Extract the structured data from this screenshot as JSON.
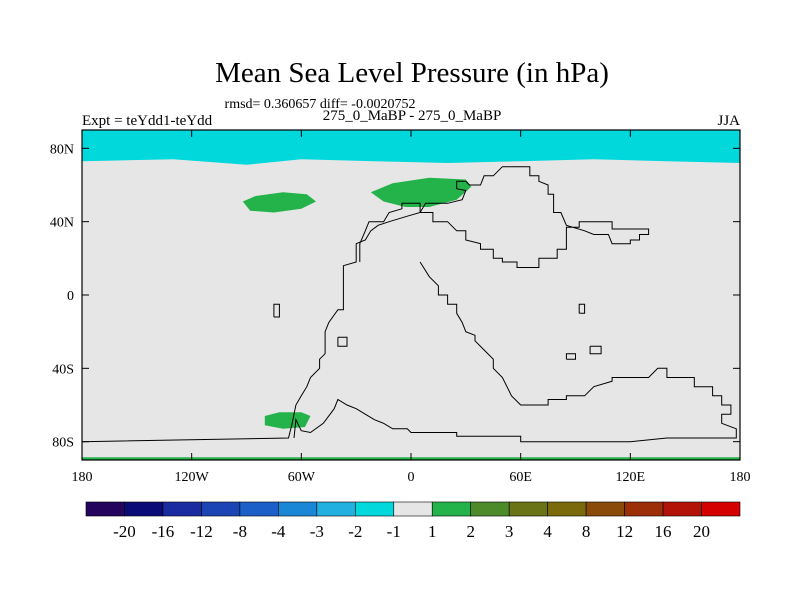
{
  "chart_data": {
    "type": "heatmap",
    "title": "Mean Sea Level Pressure (in hPa)",
    "stats_line": "rmsd= 0.360657 diff= -0.0020752",
    "left_label": "Expt = teYdd1-teYdd",
    "center_label": "275_0_MaBP - 275_0_MaBP",
    "right_label": "JJA",
    "xlim": [
      -180,
      180
    ],
    "ylim": [
      -90,
      90
    ],
    "x_ticks": [
      -180,
      -120,
      -60,
      0,
      60,
      120,
      180
    ],
    "x_tick_labels": [
      "180",
      "120W",
      "60W",
      "0",
      "60E",
      "120E",
      "180"
    ],
    "y_ticks": [
      80,
      40,
      0,
      -40,
      -80
    ],
    "y_tick_labels": [
      "80N",
      "40N",
      "0",
      "40S",
      "80S"
    ],
    "colorbar": {
      "colors": [
        "#24045c",
        "#0b0b78",
        "#1a2aa0",
        "#1b45b4",
        "#1c5fc8",
        "#1a86d6",
        "#22b0e0",
        "#00d8dc",
        "#e6e6e6",
        "#24b24a",
        "#4c8a2a",
        "#6a7416",
        "#7a6a0c",
        "#8a4a0a",
        "#9c2e08",
        "#b31206",
        "#d40000"
      ],
      "labels": [
        "-20",
        "-16",
        "-12",
        "-8",
        "-4",
        "-3",
        "-2",
        "-1",
        "1",
        "2",
        "3",
        "4",
        "8",
        "12",
        "16",
        "20"
      ]
    },
    "fields": {
      "background": "#e6e6e6",
      "negative": "#00d8dc",
      "positive": "#24b24a"
    },
    "regions": [
      {
        "name": "north-polar-band",
        "level": "-2 to -1",
        "points": [
          [
            -180,
            90
          ],
          [
            180,
            90
          ],
          [
            180,
            72
          ],
          [
            140,
            73
          ],
          [
            100,
            74
          ],
          [
            60,
            73
          ],
          [
            20,
            72
          ],
          [
            -20,
            73
          ],
          [
            -60,
            74
          ],
          [
            -90,
            71
          ],
          [
            -130,
            74
          ],
          [
            -180,
            73
          ]
        ]
      },
      {
        "name": "north-atlantic-blob",
        "level": "1 to 2",
        "points": [
          [
            -92,
            51
          ],
          [
            -85,
            54
          ],
          [
            -70,
            56
          ],
          [
            -57,
            55
          ],
          [
            -52,
            51
          ],
          [
            -60,
            47
          ],
          [
            -75,
            45
          ],
          [
            -88,
            46
          ]
        ]
      },
      {
        "name": "europe-blob",
        "level": "1 to 2",
        "points": [
          [
            -22,
            56
          ],
          [
            -10,
            61
          ],
          [
            10,
            64
          ],
          [
            30,
            63
          ],
          [
            33,
            59
          ],
          [
            25,
            52
          ],
          [
            10,
            48
          ],
          [
            -3,
            48
          ],
          [
            -15,
            51
          ]
        ]
      },
      {
        "name": "antarctic-peninsula-blob",
        "level": "1 to 2",
        "points": [
          [
            -80,
            -66
          ],
          [
            -72,
            -64
          ],
          [
            -60,
            -64
          ],
          [
            -55,
            -66
          ],
          [
            -58,
            -72
          ],
          [
            -70,
            -73
          ],
          [
            -80,
            -71
          ]
        ]
      },
      {
        "name": "south-polar-strip",
        "level": "1 to 2",
        "points": [
          [
            -180,
            -88.5
          ],
          [
            180,
            -88.5
          ],
          [
            180,
            -90
          ],
          [
            -180,
            -90
          ]
        ]
      }
    ],
    "coastlines": [
      {
        "name": "pangea",
        "points": [
          [
            -28,
            18
          ],
          [
            -28,
            28
          ],
          [
            -25,
            35
          ],
          [
            -23,
            40
          ],
          [
            -15,
            40
          ],
          [
            -12,
            45
          ],
          [
            -5,
            47
          ],
          [
            -5,
            50
          ],
          [
            5,
            50
          ],
          [
            5,
            45
          ],
          [
            12,
            45
          ],
          [
            12,
            40
          ],
          [
            20,
            40
          ],
          [
            25,
            35
          ],
          [
            30,
            35
          ],
          [
            30,
            30
          ],
          [
            38,
            28
          ],
          [
            38,
            25
          ],
          [
            45,
            25
          ],
          [
            45,
            20
          ],
          [
            50,
            20
          ],
          [
            50,
            18
          ],
          [
            58,
            18
          ],
          [
            58,
            15
          ],
          [
            70,
            15
          ],
          [
            70,
            20
          ],
          [
            80,
            20
          ],
          [
            80,
            25
          ],
          [
            85,
            25
          ],
          [
            85,
            37
          ],
          [
            92,
            37
          ],
          [
            92,
            40
          ],
          [
            110,
            40
          ],
          [
            110,
            36
          ],
          [
            130,
            36
          ],
          [
            130,
            33
          ],
          [
            125,
            33
          ],
          [
            125,
            30
          ],
          [
            120,
            30
          ],
          [
            120,
            28
          ],
          [
            110,
            28
          ],
          [
            108,
            33
          ],
          [
            100,
            33
          ],
          [
            95,
            35
          ],
          [
            85,
            38
          ],
          [
            82,
            45
          ],
          [
            78,
            45
          ],
          [
            78,
            55
          ],
          [
            75,
            55
          ],
          [
            75,
            60
          ],
          [
            70,
            62
          ],
          [
            70,
            65
          ],
          [
            65,
            65
          ],
          [
            65,
            70
          ],
          [
            50,
            70
          ],
          [
            45,
            65
          ],
          [
            40,
            65
          ],
          [
            38,
            60
          ],
          [
            32,
            60
          ],
          [
            30,
            62
          ],
          [
            25,
            62
          ],
          [
            25,
            58
          ],
          [
            30,
            57
          ],
          [
            28,
            52
          ],
          [
            20,
            50
          ],
          [
            8,
            50
          ],
          [
            5,
            45
          ],
          [
            -2,
            43
          ],
          [
            -12,
            40
          ],
          [
            -18,
            38
          ],
          [
            -22,
            35
          ],
          [
            -25,
            30
          ],
          [
            -30,
            28
          ],
          [
            -30,
            18
          ],
          [
            -37,
            16
          ],
          [
            -37,
            -8
          ],
          [
            -40,
            -8
          ],
          [
            -45,
            -15
          ],
          [
            -47,
            -20
          ],
          [
            -47,
            -32
          ],
          [
            -50,
            -35
          ],
          [
            -50,
            -40
          ],
          [
            -55,
            -45
          ],
          [
            -57,
            -50
          ],
          [
            -60,
            -55
          ],
          [
            -63,
            -60
          ],
          [
            -64,
            -65
          ],
          [
            -65,
            -70
          ],
          [
            -67,
            -78
          ],
          [
            -180,
            -80
          ]
        ]
      },
      {
        "name": "gondwana-east",
        "points": [
          [
            5,
            18
          ],
          [
            10,
            10
          ],
          [
            15,
            5
          ],
          [
            15,
            0
          ],
          [
            20,
            0
          ],
          [
            20,
            -5
          ],
          [
            25,
            -5
          ],
          [
            25,
            -10
          ],
          [
            28,
            -15
          ],
          [
            30,
            -20
          ],
          [
            35,
            -22
          ],
          [
            35,
            -25
          ],
          [
            40,
            -30
          ],
          [
            45,
            -35
          ],
          [
            45,
            -40
          ],
          [
            50,
            -45
          ],
          [
            55,
            -55
          ],
          [
            60,
            -60
          ],
          [
            75,
            -60
          ],
          [
            75,
            -57
          ],
          [
            85,
            -57
          ],
          [
            85,
            -55
          ],
          [
            95,
            -55
          ],
          [
            100,
            -50
          ],
          [
            110,
            -47
          ],
          [
            110,
            -45
          ],
          [
            130,
            -45
          ],
          [
            135,
            -40
          ],
          [
            140,
            -40
          ],
          [
            140,
            -45
          ],
          [
            155,
            -45
          ],
          [
            155,
            -50
          ],
          [
            165,
            -50
          ],
          [
            165,
            -55
          ],
          [
            170,
            -55
          ],
          [
            170,
            -60
          ],
          [
            175,
            -60
          ],
          [
            175,
            -65
          ],
          [
            170,
            -65
          ],
          [
            170,
            -70
          ],
          [
            178,
            -73
          ],
          [
            178,
            -78
          ],
          [
            160,
            -78
          ],
          [
            140,
            -78
          ],
          [
            120,
            -80
          ],
          [
            60,
            -80
          ],
          [
            60,
            -77
          ],
          [
            25,
            -77
          ],
          [
            25,
            -75
          ],
          [
            0,
            -75
          ],
          [
            -2,
            -73
          ],
          [
            -10,
            -73
          ],
          [
            -15,
            -70
          ],
          [
            -20,
            -68
          ],
          [
            -25,
            -65
          ],
          [
            -30,
            -62
          ],
          [
            -35,
            -60
          ],
          [
            -40,
            -57
          ],
          [
            -42,
            -62
          ],
          [
            -48,
            -70
          ],
          [
            -55,
            -75
          ],
          [
            -60,
            -74
          ],
          [
            -63,
            -68
          ],
          [
            -64,
            -78
          ]
        ]
      },
      {
        "name": "island-a",
        "points": [
          [
            -75,
            -12
          ],
          [
            -75,
            -5
          ],
          [
            -72,
            -5
          ],
          [
            -72,
            -12
          ],
          [
            -75,
            -12
          ]
        ]
      },
      {
        "name": "island-b",
        "points": [
          [
            -40,
            -23
          ],
          [
            -35,
            -23
          ],
          [
            -35,
            -28
          ],
          [
            -40,
            -28
          ],
          [
            -40,
            -23
          ]
        ]
      },
      {
        "name": "island-c",
        "points": [
          [
            85,
            -35
          ],
          [
            90,
            -35
          ],
          [
            90,
            -32
          ],
          [
            85,
            -32
          ],
          [
            85,
            -35
          ]
        ]
      },
      {
        "name": "island-d",
        "points": [
          [
            98,
            -28
          ],
          [
            104,
            -28
          ],
          [
            104,
            -32
          ],
          [
            98,
            -32
          ],
          [
            98,
            -28
          ]
        ]
      },
      {
        "name": "island-e",
        "points": [
          [
            92,
            -10
          ],
          [
            95,
            -10
          ],
          [
            95,
            -5
          ],
          [
            92,
            -5
          ],
          [
            92,
            -10
          ]
        ]
      }
    ]
  }
}
